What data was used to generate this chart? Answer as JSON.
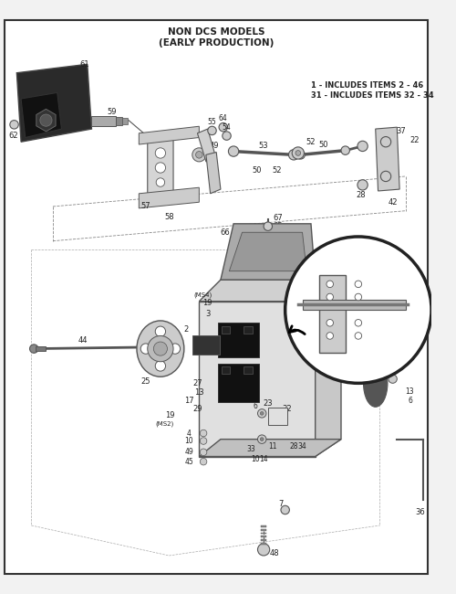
{
  "title_line1": "NON DCS MODELS",
  "title_line2": "(EARLY PRODUCTION)",
  "note_line1": "1 - INCLUDES ITEMS 2 - 46",
  "note_line2": "31 - INCLUDES ITEMS 32 - 34",
  "bg_color": "#f2f2f2",
  "border_color": "#555555",
  "line_color": "#555555",
  "text_color": "#222222",
  "dark_fill": "#1a1a1a",
  "mid_fill": "#888888",
  "light_fill": "#cccccc",
  "white": "#ffffff",
  "figsize": [
    5.0,
    6.5
  ],
  "dpi": 100
}
